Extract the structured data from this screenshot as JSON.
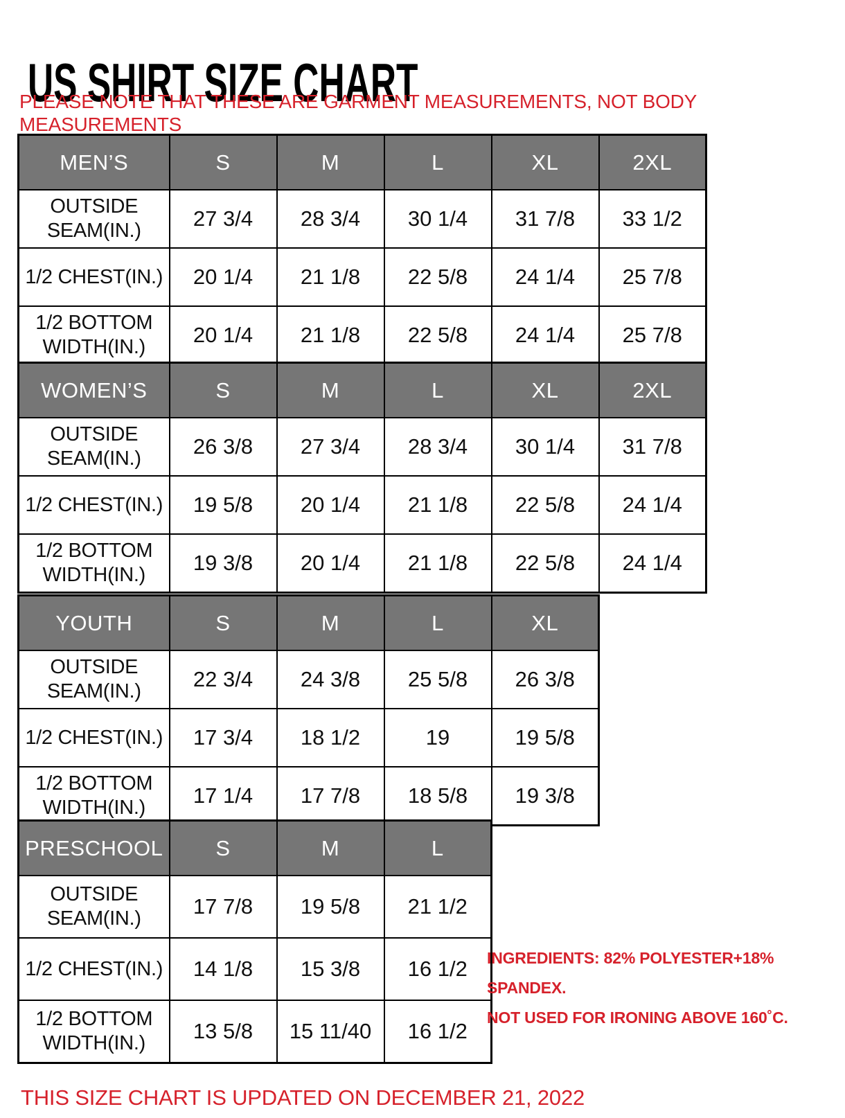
{
  "page": {
    "title": "US SHIRT SIZE CHART",
    "garment_note": "PLEASE NOTE THAT THESE ARE GARMENT MEASUREMENTS, NOT BODY MEASUREMENTS",
    "updated_note": "THIS SIZE CHART IS UPDATED ON DECEMBER 21, 2022"
  },
  "colors": {
    "accent_red": "#d6212b",
    "header_gray": "#767676",
    "border_black": "#000000"
  },
  "ingredients": {
    "line1": "INGREDIENTS: 82% POLYESTER+18% SPANDEX.",
    "line2": "NOT USED FOR IRONING ABOVE 160˚C."
  },
  "tables": [
    {
      "id": "mens",
      "header": [
        "MEN’S",
        "S",
        "M",
        "L",
        "XL",
        "2XL"
      ],
      "rows": [
        {
          "label": "OUTSIDE SEAM(IN.)",
          "values": [
            "27 3/4",
            "28 3/4",
            "30 1/4",
            "31 7/8",
            "33 1/2"
          ]
        },
        {
          "label": "1/2 CHEST(IN.)",
          "values": [
            "20 1/4",
            "21 1/8",
            "22 5/8",
            "24 1/4",
            "25 7/8"
          ]
        },
        {
          "label": "1/2 BOTTOM WIDTH(IN.)",
          "values": [
            "20 1/4",
            "21 1/8",
            "22 5/8",
            "24 1/4",
            "25 7/8"
          ]
        }
      ]
    },
    {
      "id": "womens",
      "header": [
        "WOMEN’S",
        "S",
        "M",
        "L",
        "XL",
        "2XL"
      ],
      "rows": [
        {
          "label": "OUTSIDE SEAM(IN.)",
          "values": [
            "26 3/8",
            "27 3/4",
            "28 3/4",
            "30 1/4",
            "31 7/8"
          ]
        },
        {
          "label": "1/2 CHEST(IN.)",
          "values": [
            "19 5/8",
            "20 1/4",
            "21 1/8",
            "22 5/8",
            "24 1/4"
          ]
        },
        {
          "label": "1/2 BOTTOM WIDTH(IN.)",
          "values": [
            "19 3/8",
            "20 1/4",
            "21 1/8",
            "22 5/8",
            "24 1/4"
          ]
        }
      ]
    },
    {
      "id": "youth",
      "header": [
        "YOUTH",
        "S",
        "M",
        "L",
        "XL"
      ],
      "rows": [
        {
          "label": "OUTSIDE SEAM(IN.)",
          "values": [
            "22 3/4",
            "24 3/8",
            "25 5/8",
            "26 3/8"
          ]
        },
        {
          "label": "1/2 CHEST(IN.)",
          "values": [
            "17 3/4",
            "18 1/2",
            "19",
            "19 5/8"
          ]
        },
        {
          "label": "1/2 BOTTOM WIDTH(IN.)",
          "values": [
            "17 1/4",
            "17 7/8",
            "18 5/8",
            "19 3/8"
          ]
        }
      ]
    },
    {
      "id": "preschool",
      "header": [
        "PRESCHOOL",
        "S",
        "M",
        "L"
      ],
      "rows": [
        {
          "label": "OUTSIDE SEAM(IN.)",
          "values": [
            "17 7/8",
            "19 5/8",
            "21 1/2"
          ]
        },
        {
          "label": "1/2 CHEST(IN.)",
          "values": [
            "14 1/8",
            "15 3/8",
            "16 1/2"
          ]
        },
        {
          "label": "1/2 BOTTOM WIDTH(IN.)",
          "values": [
            "13 5/8",
            "15 11/40",
            "16 1/2"
          ]
        }
      ]
    }
  ]
}
